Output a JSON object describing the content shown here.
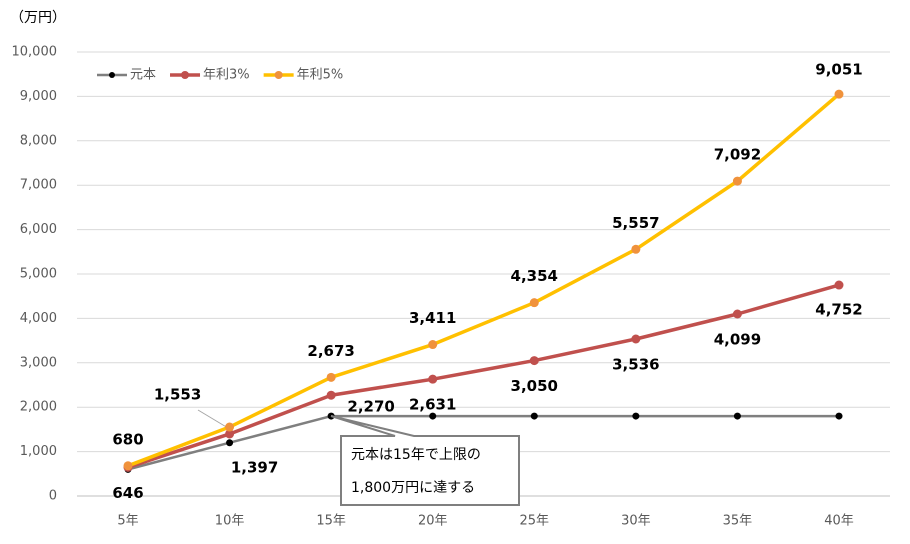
{
  "chart_data": {
    "type": "line",
    "y_unit": "（万円）",
    "categories": [
      "5年",
      "10年",
      "15年",
      "20年",
      "25年",
      "30年",
      "35年",
      "40年"
    ],
    "series": [
      {
        "name": "元本",
        "color": "#7f7f7f",
        "marker_color": "#000000",
        "values": [
          600,
          1200,
          1800,
          1800,
          1800,
          1800,
          1800,
          1800
        ]
      },
      {
        "name": "年利3%",
        "color": "#c0504d",
        "marker_color": "#c0504d",
        "values": [
          646,
          1397,
          2270,
          2631,
          3050,
          3536,
          4099,
          4752
        ],
        "value_labels": [
          "646",
          "1,397",
          "2,270",
          "2,631",
          "3,050",
          "3,536",
          "4,099",
          "4,752"
        ]
      },
      {
        "name": "年利5%",
        "color": "#ffc000",
        "marker_color": "#f0923c",
        "values": [
          680,
          1553,
          2673,
          3411,
          4354,
          5557,
          7092,
          9051
        ],
        "value_labels": [
          "680",
          "1,553",
          "2,673",
          "3,411",
          "4,354",
          "5,557",
          "7,092",
          "9,051"
        ]
      }
    ],
    "ylim": [
      0,
      10000
    ],
    "yticks": [
      0,
      {
        "value": 1000,
        "label": "1,000"
      },
      {
        "value": 2000,
        "label": "2,000"
      },
      {
        "value": 3000,
        "label": "3,000"
      },
      {
        "value": 4000,
        "label": "4,000"
      },
      {
        "value": 5000,
        "label": "5,000"
      },
      {
        "value": 6000,
        "label": "6,000"
      },
      {
        "value": 7000,
        "label": "7,000"
      },
      {
        "value": 8000,
        "label": "8,000"
      },
      {
        "value": 9000,
        "label": "9,000"
      },
      {
        "value": 10000,
        "label": "10,000"
      }
    ],
    "grid": true,
    "legend": "top-left",
    "annotation": [
      "元本は15年で上限の",
      "1,800万円に達する"
    ]
  }
}
